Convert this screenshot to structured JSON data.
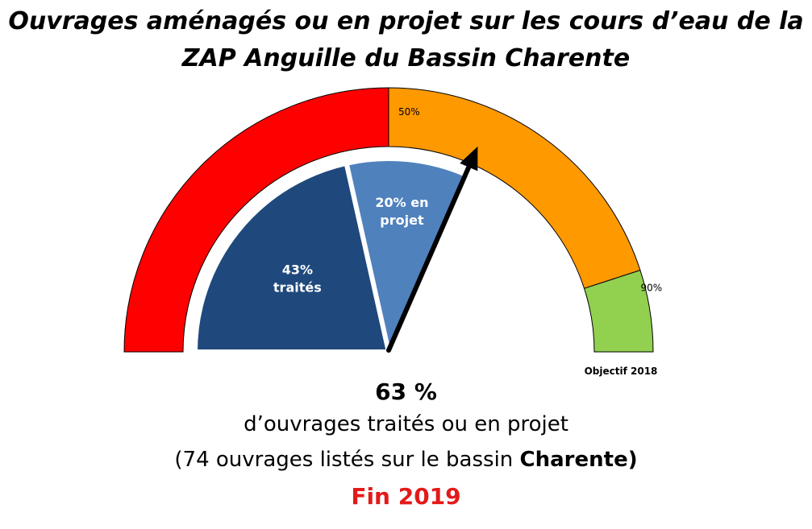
{
  "title": {
    "line1": "Ouvrages aménagés ou en projet sur les cours d’eau de la",
    "line2": "ZAP Anguille du Bassin Charente"
  },
  "chart_data": {
    "type": "gauge",
    "scale_max": 100,
    "bands": [
      {
        "from": 0,
        "to": 50,
        "color": "#ff0000"
      },
      {
        "from": 50,
        "to": 90,
        "color": "#ff9900",
        "label": "50%"
      },
      {
        "from": 90,
        "to": 100,
        "color": "#92d050",
        "label": "90%"
      }
    ],
    "segments": [
      {
        "from": 0,
        "to": 43,
        "color": "#1f497d",
        "label_line1": "43%",
        "label_line2": "traités"
      },
      {
        "from": 43,
        "to": 63,
        "color": "#4f81bd",
        "label_line1": "20% en",
        "label_line2": "projet"
      }
    ],
    "pointer_value": 63,
    "objective_label": "Objectif 2018"
  },
  "summary": {
    "percent": "63 %",
    "line1": "d’ouvrages traités ou en projet",
    "line2_prefix": "(74 ouvrages listés sur le bassin ",
    "line2_bold": "Charente)",
    "fin": "Fin 2019"
  }
}
